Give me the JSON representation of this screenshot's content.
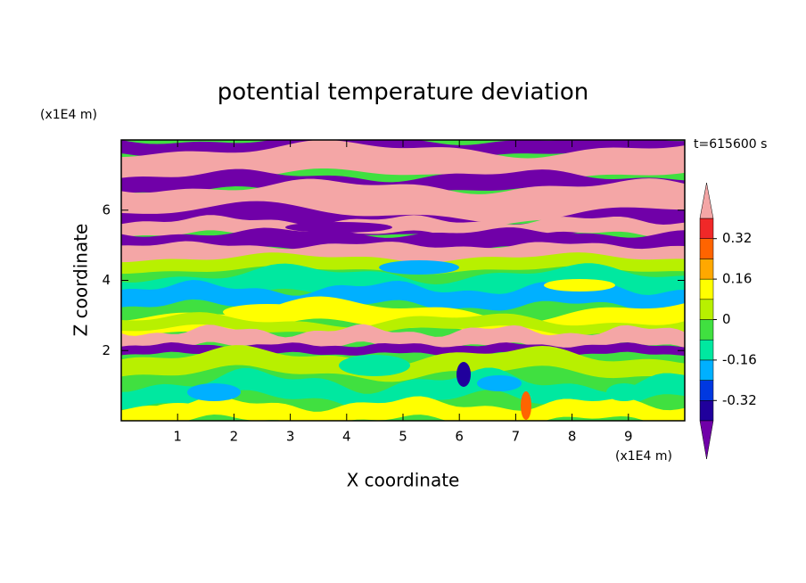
{
  "chart_data": {
    "type": "contour",
    "title": "potential temperature deviation",
    "xlabel": "X coordinate",
    "ylabel": "Z coordinate",
    "x_unit": "(x1E4 m)",
    "y_unit": "(x1E4 m)",
    "time_label": "t=615600 s",
    "xlim": [
      0,
      10
    ],
    "xticks": [
      1,
      2,
      3,
      4,
      5,
      6,
      7,
      8,
      9
    ],
    "ylim": [
      0,
      8
    ],
    "yticks": [
      2,
      4,
      6
    ],
    "colorbar": {
      "levels": [
        -0.4,
        -0.32,
        -0.24,
        -0.16,
        -0.08,
        0,
        0.08,
        0.16,
        0.24,
        0.32,
        0.4
      ],
      "colors": [
        "#20009c",
        "#0038e0",
        "#00b0ff",
        "#00e8a0",
        "#40e040",
        "#b8f000",
        "#ffff00",
        "#ffa800",
        "#ff6400",
        "#f02828"
      ],
      "under_color": "#7000a8",
      "over_color": "#f4a6a6",
      "ticks": [
        -0.32,
        -0.16,
        0,
        0.16,
        0.32
      ]
    }
  }
}
